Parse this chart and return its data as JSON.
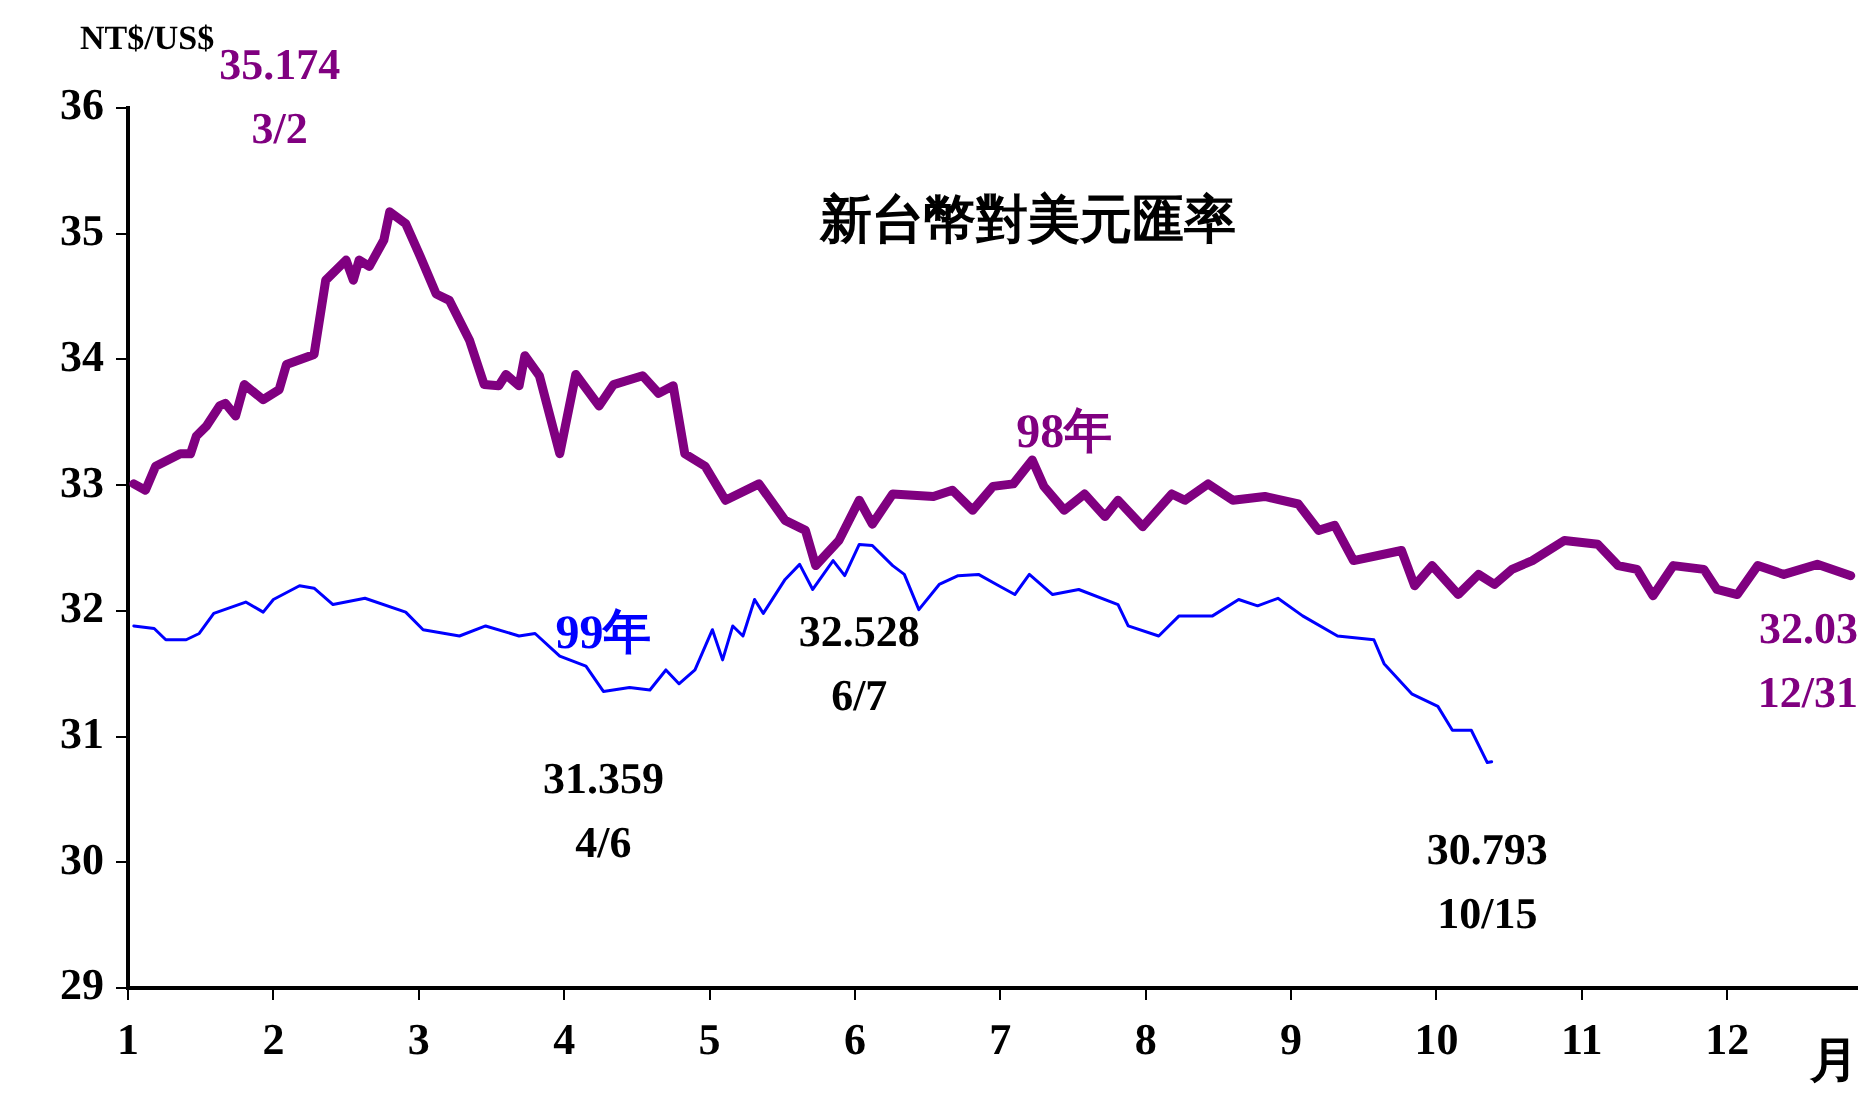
{
  "chart_data": {
    "type": "line",
    "title": "新台幣對美元匯率",
    "ylabel": "NT$/US$",
    "xlabel": "月",
    "xlim": [
      1,
      12.9
    ],
    "xticks": [
      1,
      2,
      3,
      4,
      5,
      6,
      7,
      8,
      9,
      10,
      11,
      12
    ],
    "ylim": [
      29,
      36
    ],
    "yticks": [
      29,
      30,
      31,
      32,
      33,
      34,
      35,
      36
    ],
    "grid": false,
    "legend": false,
    "marker": "none",
    "line_style": "solid",
    "series": [
      {
        "name": "98年",
        "color": "#800080",
        "x": [
          1.04,
          1.12,
          1.19,
          1.36,
          1.43,
          1.47,
          1.54,
          1.63,
          1.67,
          1.74,
          1.8,
          1.93,
          2.04,
          2.09,
          2.28,
          2.36,
          2.5,
          2.55,
          2.59,
          2.66,
          2.76,
          2.8,
          2.91,
          3.01,
          3.12,
          3.21,
          3.35,
          3.45,
          3.55,
          3.6,
          3.69,
          3.73,
          3.83,
          3.97,
          4.08,
          4.24,
          4.34,
          4.54,
          4.65,
          4.75,
          4.83,
          4.97,
          5.11,
          5.34,
          5.52,
          5.66,
          5.73,
          5.89,
          6.03,
          6.12,
          6.26,
          6.54,
          6.67,
          6.81,
          6.95,
          7.09,
          7.22,
          7.3,
          7.44,
          7.58,
          7.72,
          7.81,
          7.98,
          8.18,
          8.27,
          8.43,
          8.6,
          8.82,
          9.05,
          9.19,
          9.3,
          9.43,
          9.76,
          9.85,
          9.97,
          10.15,
          10.29,
          10.4,
          10.52,
          10.66,
          10.88,
          11.11,
          11.25,
          11.38,
          11.49,
          11.63,
          11.84,
          11.93,
          12.07,
          12.21,
          12.39,
          12.62,
          12.85
        ],
        "values": [
          33.01,
          32.96,
          33.15,
          33.25,
          33.25,
          33.39,
          33.47,
          33.63,
          33.65,
          33.55,
          33.8,
          33.68,
          33.76,
          33.96,
          34.04,
          34.63,
          34.79,
          34.63,
          34.79,
          34.74,
          34.95,
          35.174,
          35.08,
          34.82,
          34.52,
          34.47,
          34.15,
          33.8,
          33.79,
          33.88,
          33.79,
          34.03,
          33.87,
          33.25,
          33.88,
          33.63,
          33.8,
          33.87,
          33.73,
          33.79,
          33.25,
          33.15,
          32.88,
          33.01,
          32.72,
          32.64,
          32.36,
          32.56,
          32.88,
          32.69,
          32.93,
          32.91,
          32.96,
          32.8,
          32.99,
          33.01,
          33.2,
          32.99,
          32.8,
          32.93,
          32.75,
          32.88,
          32.67,
          32.93,
          32.88,
          33.01,
          32.88,
          32.91,
          32.85,
          32.64,
          32.68,
          32.4,
          32.48,
          32.2,
          32.36,
          32.13,
          32.29,
          32.21,
          32.33,
          32.4,
          32.56,
          32.53,
          32.36,
          32.33,
          32.12,
          32.36,
          32.33,
          32.17,
          32.13,
          32.36,
          32.29,
          32.37,
          32.28
        ]
      },
      {
        "name": "99年",
        "color": "#0000ff",
        "x": [
          1.04,
          1.18,
          1.26,
          1.4,
          1.49,
          1.59,
          1.81,
          1.93,
          2.0,
          2.18,
          2.28,
          2.41,
          2.63,
          2.91,
          3.03,
          3.28,
          3.46,
          3.69,
          3.8,
          3.97,
          4.15,
          4.27,
          4.45,
          4.59,
          4.7,
          4.79,
          4.9,
          5.02,
          5.09,
          5.16,
          5.23,
          5.31,
          5.37,
          5.52,
          5.62,
          5.71,
          5.85,
          5.93,
          6.03,
          6.12,
          6.26,
          6.34,
          6.44,
          6.58,
          6.71,
          6.85,
          6.99,
          7.1,
          7.2,
          7.36,
          7.54,
          7.81,
          7.88,
          8.09,
          8.23,
          8.46,
          8.64,
          8.77,
          8.91,
          9.08,
          9.32,
          9.57,
          9.64,
          9.83,
          10.01,
          10.11,
          10.24,
          10.35,
          10.38
        ],
        "values": [
          31.88,
          31.86,
          31.77,
          31.77,
          31.82,
          31.98,
          32.07,
          31.99,
          32.09,
          32.2,
          32.18,
          32.05,
          32.1,
          31.99,
          31.85,
          31.8,
          31.88,
          31.8,
          31.82,
          31.64,
          31.56,
          31.359,
          31.39,
          31.37,
          31.53,
          31.42,
          31.53,
          31.85,
          31.61,
          31.88,
          31.8,
          32.09,
          31.98,
          32.25,
          32.37,
          32.17,
          32.4,
          32.28,
          32.528,
          32.52,
          32.36,
          32.29,
          32.01,
          32.21,
          32.28,
          32.29,
          32.2,
          32.13,
          32.29,
          32.13,
          32.17,
          32.05,
          31.88,
          31.8,
          31.96,
          31.96,
          32.09,
          32.04,
          32.1,
          31.96,
          31.8,
          31.77,
          31.58,
          31.34,
          31.24,
          31.05,
          31.05,
          30.793,
          30.8
        ]
      }
    ],
    "annotations": [
      {
        "text": "35.174\n3/2",
        "x": 2.8,
        "y": 35.174
      },
      {
        "text": "31.359\n4/6",
        "x": 4.27,
        "y": 31.359
      },
      {
        "text": "32.528\n6/7",
        "x": 6.03,
        "y": 32.528
      },
      {
        "text": "30.793\n10/15",
        "x": 10.35,
        "y": 30.793
      },
      "32.03\n12/31"
    ]
  }
}
